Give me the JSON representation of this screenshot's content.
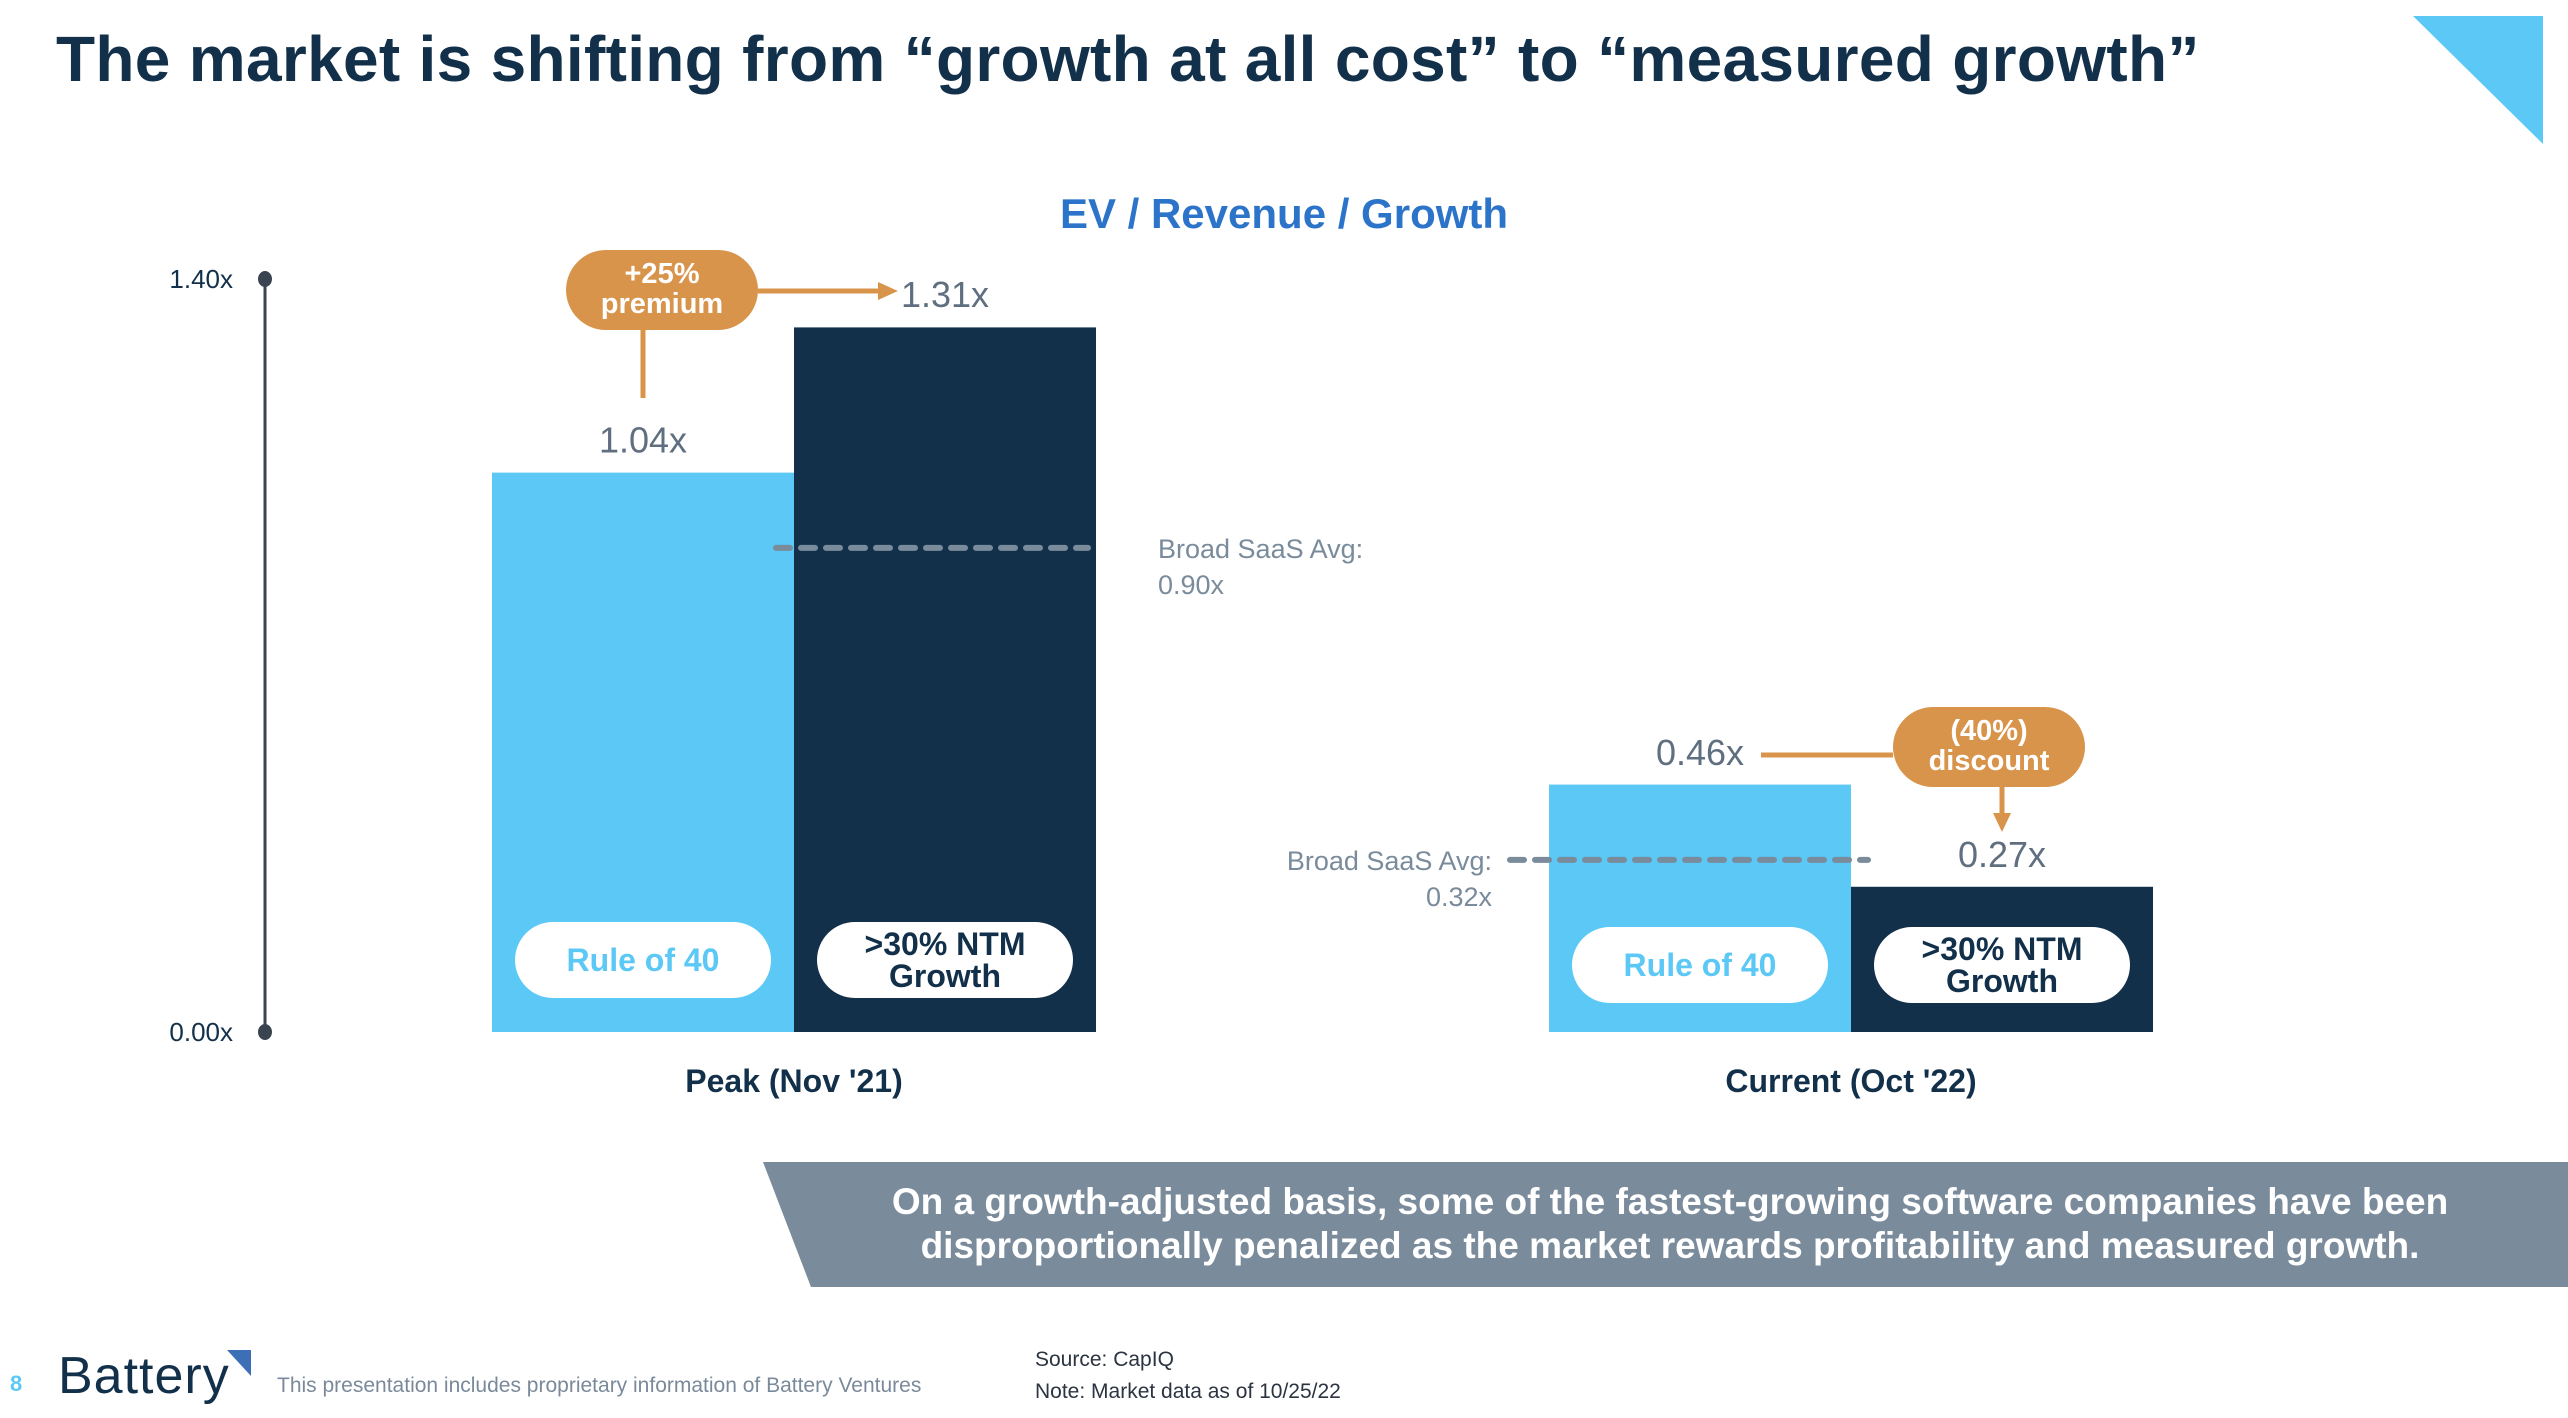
{
  "slide": {
    "title": "The market is shifting from “growth at all cost” to “measured growth”",
    "page_number": "8",
    "logo_text": "Battery",
    "disclaimer": "This presentation includes proprietary information of Battery Ventures",
    "source": "Source: CapIQ",
    "note": "Note: Market data as of 10/25/22",
    "caption": "On a growth-adjusted basis, some of the fastest-growing software companies have been disproportionally penalized as the market rewards profitability and measured growth.",
    "colors": {
      "title": "#12304a",
      "accent_light_blue": "#5bc8f5",
      "navy": "#12304a",
      "orange": "#d9944b",
      "gray_label": "#5f6f80",
      "banner": "#7a8b9c",
      "chart_title": "#2b74c9"
    }
  },
  "chart_data": {
    "type": "bar",
    "title": "EV / Revenue / Growth",
    "xlabel": "",
    "ylabel": "",
    "ylim": [
      0,
      1.4
    ],
    "yticks": [
      {
        "value": 0,
        "label": "0.00x"
      },
      {
        "value": 1.4,
        "label": "1.40x"
      }
    ],
    "grid": false,
    "categories": [
      "Peak (Nov '21)",
      "Current (Oct '22)"
    ],
    "series": [
      {
        "name": "Rule of 40",
        "color": "#5bc8f5",
        "text_color": "#5bc8f5",
        "values": [
          1.04,
          0.46
        ],
        "labels": [
          "1.04x",
          "0.46x"
        ]
      },
      {
        "name": ">30% NTM Growth",
        "label_lines": [
          ">30% NTM",
          "Growth"
        ],
        "color": "#12304a",
        "text_color": "#12304a",
        "values": [
          1.31,
          0.27
        ],
        "labels": [
          "1.31x",
          "0.27x"
        ]
      }
    ],
    "reference_lines": [
      {
        "category": "Peak (Nov '21)",
        "value": 0.9,
        "label_lines": [
          "Broad SaaS Avg:",
          "0.90x"
        ],
        "label_side": "right"
      },
      {
        "category": "Current (Oct '22)",
        "value": 0.32,
        "label_lines": [
          "Broad SaaS Avg:",
          "0.32x"
        ],
        "label_side": "left"
      }
    ],
    "annotations": [
      {
        "category": "Peak (Nov '21)",
        "text_lines": [
          "+25%",
          "premium"
        ],
        "type": "premium"
      },
      {
        "category": "Current (Oct '22)",
        "text_lines": [
          "(40%)",
          "discount"
        ],
        "type": "discount"
      }
    ]
  }
}
